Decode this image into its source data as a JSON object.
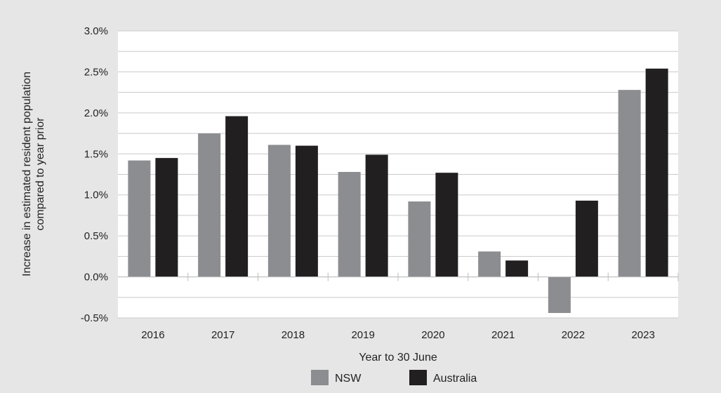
{
  "chart_data": {
    "type": "bar",
    "xlabel": "Year to 30 June",
    "ylabel_lines": [
      "Increase in estimated resident population",
      "compared to year prior"
    ],
    "categories": [
      "2016",
      "2017",
      "2018",
      "2019",
      "2020",
      "2021",
      "2022",
      "2023"
    ],
    "series": [
      {
        "name": "NSW",
        "color": "#8c8d90",
        "values": [
          1.42,
          1.75,
          1.61,
          1.28,
          0.92,
          0.31,
          -0.44,
          2.28
        ]
      },
      {
        "name": "Australia",
        "color": "#221f20",
        "values": [
          1.45,
          1.96,
          1.6,
          1.49,
          1.27,
          0.2,
          0.93,
          2.54
        ]
      }
    ],
    "ylim": [
      -0.5,
      3.0
    ],
    "yticks": [
      -0.5,
      0.0,
      0.5,
      1.0,
      1.5,
      2.0,
      2.5,
      3.0
    ],
    "ytick_labels": [
      "-0.5%",
      "0.0%",
      "0.5%",
      "1.0%",
      "1.5%",
      "2.0%",
      "2.5%",
      "3.0%"
    ],
    "minor_grid_step": 0.25,
    "grid": true,
    "legend_position": "bottom-center",
    "colors": {
      "background": "#e6e6e7",
      "plot_area": "#ffffff",
      "grid": "#c9c9cb"
    }
  }
}
